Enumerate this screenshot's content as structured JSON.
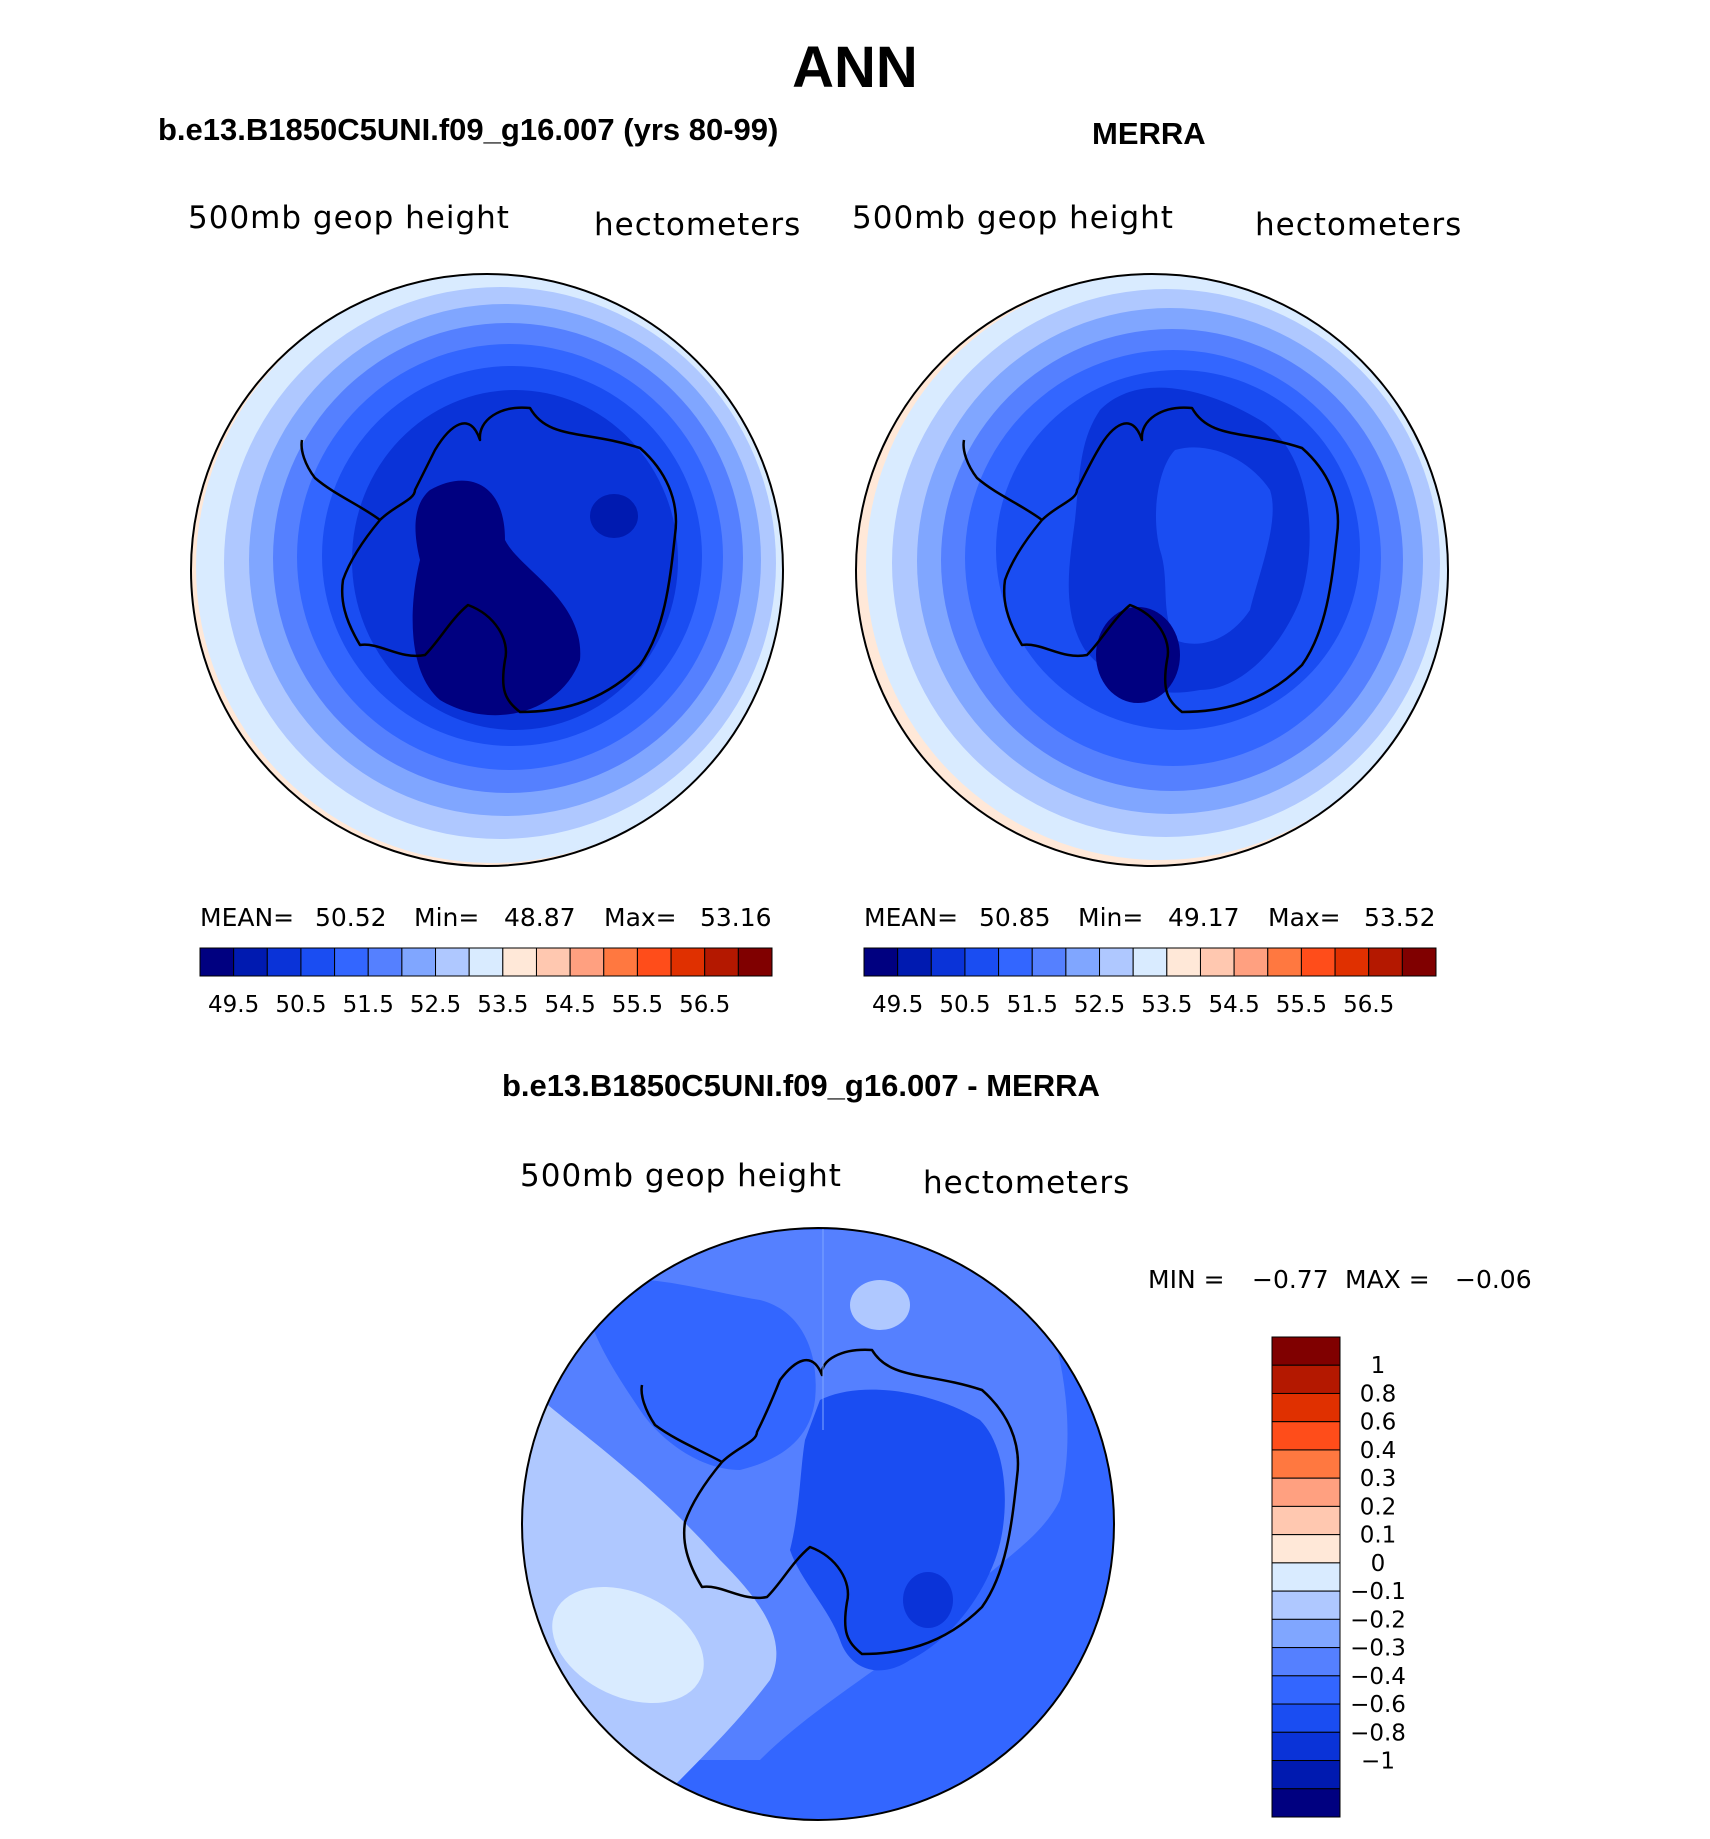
{
  "title": "ANN",
  "panels": [
    {
      "title": "b.e13.B1850C5UNI.f09_g16.007 (yrs 80-99)",
      "left_label": "500mb geop height",
      "right_label": "hectometers",
      "stats": {
        "mean_label": "MEAN=",
        "mean": "50.52",
        "min_label": "Min=",
        "min": "48.87",
        "max_label": "Max=",
        "max": "53.16"
      }
    },
    {
      "title": "MERRA",
      "left_label": "500mb geop height",
      "right_label": "hectometers",
      "stats": {
        "mean_label": "MEAN=",
        "mean": "50.85",
        "min_label": "Min=",
        "min": "49.17",
        "max_label": "Max=",
        "max": "53.52"
      }
    },
    {
      "title": "b.e13.B1850C5UNI.f09_g16.007 - MERRA",
      "left_label": "500mb geop height",
      "right_label": "hectometers",
      "stats": {
        "min_label": "MIN =",
        "min": "−0.77",
        "max_label": "MAX =",
        "max": "−0.06"
      }
    }
  ],
  "chart_data": [
    {
      "type": "heatmap",
      "projection": "south polar stereographic",
      "title": "b.e13.B1850C5UNI.f09_g16.007 (yrs 80-99)",
      "variable": "500mb geop height",
      "units": "hectometers",
      "mean": 50.52,
      "min": 48.87,
      "max": 53.16,
      "contour_levels": [
        49.5,
        50,
        50.5,
        51,
        51.5,
        52,
        52.5,
        53,
        53.5,
        54,
        54.5,
        55,
        55.5,
        56,
        56.5
      ],
      "colorbar_tick_labels": [
        "49.5",
        "50.5",
        "51.5",
        "52.5",
        "53.5",
        "54.5",
        "55.5",
        "56.5"
      ],
      "colors": [
        "#000080",
        "#001ab0",
        "#0a33d8",
        "#1a4df2",
        "#3366ff",
        "#5580ff",
        "#80a6ff",
        "#afc8ff",
        "#d9ebff",
        "#ffe8d8",
        "#ffc8b0",
        "#ffa080",
        "#ff7840",
        "#ff4d1a",
        "#e03000",
        "#b41800",
        "#800000"
      ]
    },
    {
      "type": "heatmap",
      "projection": "south polar stereographic",
      "title": "MERRA",
      "variable": "500mb geop height",
      "units": "hectometers",
      "mean": 50.85,
      "min": 49.17,
      "max": 53.52,
      "contour_levels": [
        49.5,
        50,
        50.5,
        51,
        51.5,
        52,
        52.5,
        53,
        53.5,
        54,
        54.5,
        55,
        55.5,
        56,
        56.5
      ],
      "colorbar_tick_labels": [
        "49.5",
        "50.5",
        "51.5",
        "52.5",
        "53.5",
        "54.5",
        "55.5",
        "56.5"
      ],
      "colors": [
        "#000080",
        "#001ab0",
        "#0a33d8",
        "#1a4df2",
        "#3366ff",
        "#5580ff",
        "#80a6ff",
        "#afc8ff",
        "#d9ebff",
        "#ffe8d8",
        "#ffc8b0",
        "#ffa080",
        "#ff7840",
        "#ff4d1a",
        "#e03000",
        "#b41800",
        "#800000"
      ]
    },
    {
      "type": "heatmap",
      "projection": "south polar stereographic",
      "title": "b.e13.B1850C5UNI.f09_g16.007 - MERRA",
      "variable": "500mb geop height",
      "units": "hectometers",
      "min": -0.77,
      "max": -0.06,
      "contour_levels": [
        -1,
        -0.8,
        -0.6,
        -0.4,
        -0.3,
        -0.2,
        -0.1,
        0,
        0.1,
        0.2,
        0.3,
        0.4,
        0.6,
        0.8,
        1
      ],
      "colorbar_tick_labels": [
        "1",
        "0.8",
        "0.6",
        "0.4",
        "0.3",
        "0.2",
        "0.1",
        "0",
        "−0.1",
        "−0.2",
        "−0.3",
        "−0.4",
        "−0.6",
        "−0.8",
        "−1"
      ],
      "colors": [
        "#800000",
        "#b41800",
        "#e03000",
        "#ff4d1a",
        "#ff7840",
        "#ffa080",
        "#ffc8b0",
        "#ffe8d8",
        "#d9ebff",
        "#afc8ff",
        "#80a6ff",
        "#5580ff",
        "#3366ff",
        "#1a4df2",
        "#0a33d8",
        "#001ab0",
        "#000080"
      ]
    }
  ]
}
